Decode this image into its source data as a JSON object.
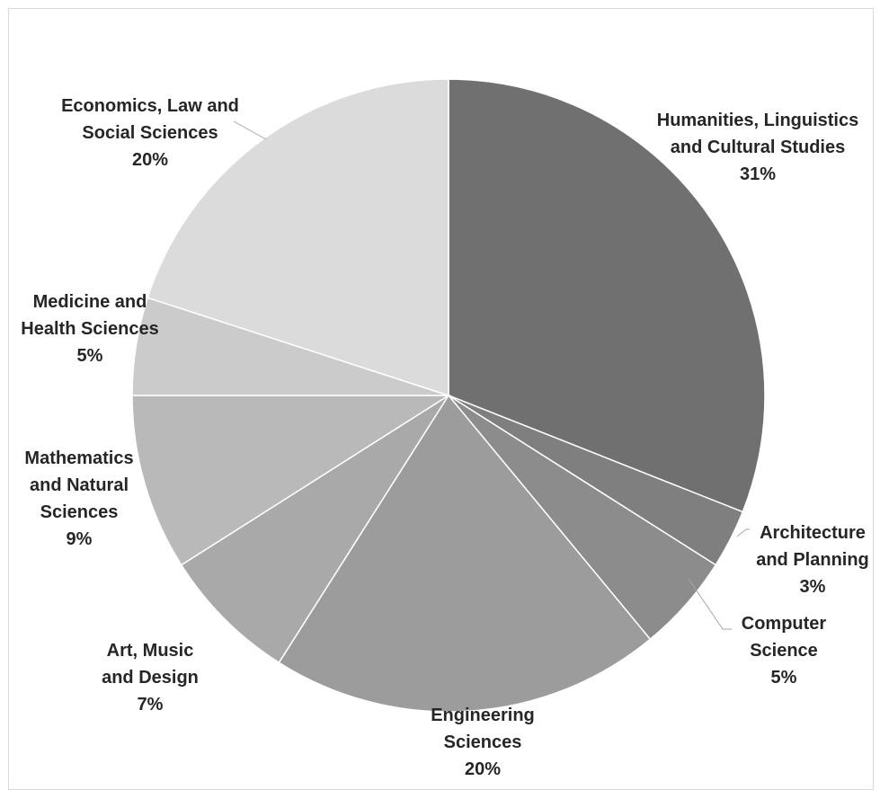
{
  "chart_data": {
    "type": "pie",
    "title": "",
    "slices": [
      {
        "label_lines": [
          "Humanities, Linguistics",
          "and Cultural Studies"
        ],
        "percent_label": "31%",
        "value": 31,
        "color": "#707070"
      },
      {
        "label_lines": [
          "Architecture",
          "and Planning"
        ],
        "percent_label": "3%",
        "value": 3,
        "color": "#7f7f7f"
      },
      {
        "label_lines": [
          "Computer",
          "Science"
        ],
        "percent_label": "5%",
        "value": 5,
        "color": "#8c8c8c"
      },
      {
        "label_lines": [
          "Engineering",
          "Sciences"
        ],
        "percent_label": "20%",
        "value": 20,
        "color": "#9c9c9c"
      },
      {
        "label_lines": [
          "Art, Music",
          "and Design"
        ],
        "percent_label": "7%",
        "value": 7,
        "color": "#a9a9a9"
      },
      {
        "label_lines": [
          "Mathematics",
          "and Natural",
          "Sciences"
        ],
        "percent_label": "9%",
        "value": 9,
        "color": "#b9b9b9"
      },
      {
        "label_lines": [
          "Medicine and",
          "Health Sciences"
        ],
        "percent_label": "5%",
        "value": 5,
        "color": "#cbcbcb"
      },
      {
        "label_lines": [
          "Economics, Law and",
          "Social Sciences"
        ],
        "percent_label": "20%",
        "value": 20,
        "color": "#dbdbdb"
      }
    ]
  }
}
